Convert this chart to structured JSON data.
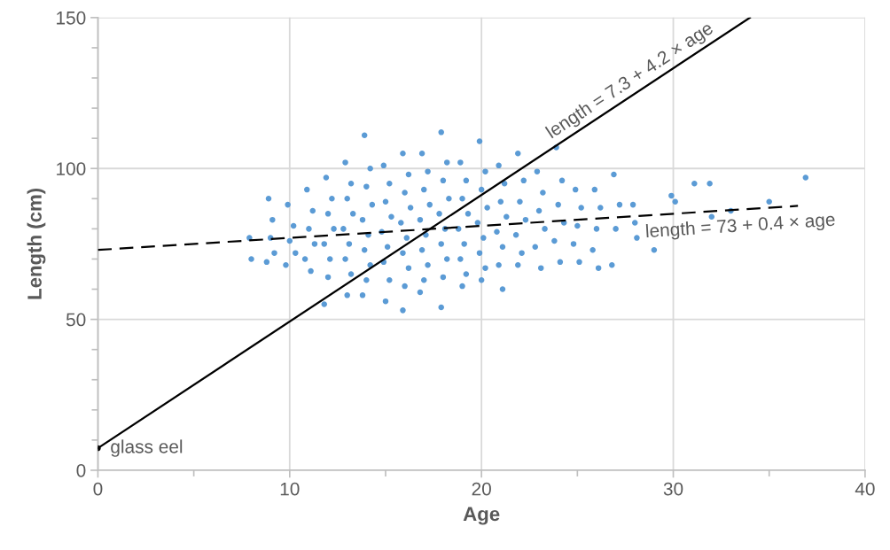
{
  "chart_data": {
    "type": "scatter",
    "xlabel": "Age",
    "ylabel": "Length (cm)",
    "xlim": [
      0,
      40
    ],
    "ylim": [
      0,
      150
    ],
    "xticks": [
      0,
      {
        "value": 5,
        "label": null
      },
      10,
      {
        "value": 15,
        "label": null
      },
      20,
      {
        "value": 25,
        "label": null
      },
      30,
      {
        "value": 35,
        "label": null
      },
      40
    ],
    "yticks": [
      0,
      {
        "value": 10,
        "label": null
      },
      {
        "value": 20,
        "label": null
      },
      {
        "value": 30,
        "label": null
      },
      {
        "value": 40,
        "label": null
      },
      50,
      {
        "value": 60,
        "label": null
      },
      {
        "value": 70,
        "label": null
      },
      {
        "value": 80,
        "label": null
      },
      {
        "value": 90,
        "label": null
      },
      100,
      {
        "value": 110,
        "label": null
      },
      {
        "value": 120,
        "label": null
      },
      {
        "value": 130,
        "label": null
      },
      {
        "value": 140,
        "label": null
      },
      150
    ],
    "grid": true,
    "legend": false,
    "marker": "circle",
    "series": [
      {
        "color": "#5b9bd5",
        "x": [
          7.9,
          8.0,
          8.9,
          9.1,
          9.0,
          9.2,
          8.8,
          9.9,
          10.2,
          10.0,
          10.3,
          9.8,
          10.9,
          11.2,
          11.0,
          11.3,
          10.8,
          11.1,
          11.9,
          12.2,
          12.0,
          12.3,
          11.8,
          12.1,
          12.0,
          11.8,
          12.9,
          13.2,
          13.0,
          13.3,
          12.8,
          13.1,
          12.9,
          13.2,
          13.0,
          13.9,
          14.2,
          14.0,
          14.3,
          13.8,
          14.1,
          13.9,
          14.2,
          14.0,
          13.8,
          14.9,
          15.2,
          15.0,
          15.3,
          14.8,
          15.1,
          14.9,
          15.2,
          15.0,
          15.9,
          16.2,
          16.0,
          16.3,
          15.8,
          16.1,
          15.9,
          16.2,
          16.0,
          15.9,
          16.9,
          17.2,
          17.0,
          17.3,
          16.8,
          17.1,
          16.9,
          17.2,
          17.0,
          16.8,
          17.9,
          18.2,
          18.0,
          18.3,
          17.8,
          18.1,
          17.9,
          18.2,
          18.0,
          17.9,
          18.9,
          19.2,
          19.0,
          19.3,
          18.8,
          19.1,
          18.9,
          19.2,
          19.0,
          19.9,
          20.2,
          20.0,
          20.3,
          19.8,
          20.1,
          19.9,
          20.2,
          20.0,
          20.9,
          21.2,
          21.0,
          21.3,
          20.8,
          21.1,
          20.9,
          21.1,
          21.9,
          22.2,
          22.0,
          22.3,
          21.8,
          22.1,
          21.9,
          22.9,
          23.2,
          23.0,
          23.3,
          22.8,
          23.1,
          23.9,
          24.2,
          24.0,
          24.3,
          23.8,
          24.1,
          24.9,
          25.2,
          25.0,
          24.8,
          25.1,
          25.9,
          26.2,
          26.0,
          25.8,
          26.1,
          26.9,
          27.2,
          27.0,
          26.8,
          27.9,
          28.0,
          28.1,
          29.0,
          29.9,
          30.1,
          31.1,
          31.9,
          32.0,
          33.0,
          35.0,
          36.9
        ],
        "values": [
          77,
          70,
          90,
          83,
          77,
          72,
          69,
          88,
          81,
          76,
          72,
          68,
          93,
          86,
          80,
          75,
          70,
          66,
          97,
          90,
          85,
          80,
          75,
          70,
          64,
          55,
          102,
          95,
          90,
          85,
          80,
          75,
          70,
          65,
          58,
          111,
          100,
          94,
          88,
          83,
          78,
          73,
          68,
          63,
          58,
          101,
          95,
          89,
          84,
          79,
          74,
          69,
          63,
          56,
          105,
          98,
          92,
          87,
          82,
          77,
          72,
          67,
          61,
          53,
          105,
          99,
          93,
          88,
          83,
          78,
          73,
          68,
          63,
          59,
          112,
          102,
          96,
          90,
          85,
          80,
          75,
          70,
          64,
          54,
          102,
          96,
          90,
          85,
          80,
          75,
          70,
          65,
          61,
          109,
          99,
          93,
          87,
          82,
          77,
          72,
          67,
          63,
          101,
          95,
          89,
          84,
          79,
          74,
          68,
          60,
          105,
          96,
          89,
          83,
          78,
          72,
          68,
          99,
          92,
          86,
          80,
          74,
          67,
          107,
          96,
          88,
          82,
          76,
          69,
          93,
          87,
          81,
          75,
          69,
          93,
          87,
          80,
          73,
          67,
          98,
          88,
          80,
          68,
          88,
          82,
          77,
          73,
          91,
          89,
          95,
          95,
          84,
          86,
          89,
          97
        ]
      },
      {
        "type": "line",
        "color": "#000000",
        "line_style": "solid",
        "marker": "none",
        "x": [
          0,
          34
        ],
        "values": [
          7.3,
          150
        ]
      },
      {
        "type": "line",
        "color": "#000000",
        "line_style": "dashed",
        "marker": "none",
        "x": [
          0,
          36.5
        ],
        "values": [
          73,
          87.6
        ]
      },
      {
        "color": "#000000",
        "x": [
          0
        ],
        "values": [
          7.3
        ]
      }
    ],
    "annotations": [
      {
        "text": "glass eel",
        "x": 0,
        "y": 7.3
      },
      {
        "text": "length = 7.3 + 4.2 × age",
        "x": 28,
        "y": 124.9
      },
      {
        "text": "length = 73 + 0.4 × age",
        "x": 33.5,
        "y": 86.4
      }
    ]
  }
}
